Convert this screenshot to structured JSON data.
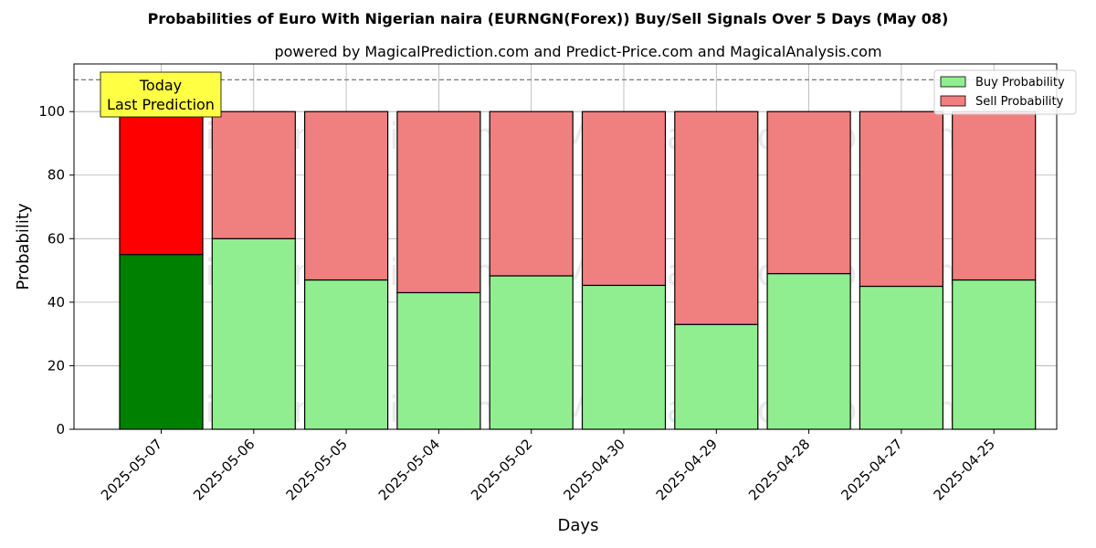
{
  "chart_data": {
    "type": "bar",
    "stacked": true,
    "title": "Probabilities of Euro With Nigerian naira (EURNGN(Forex)) Buy/Sell Signals Over 5 Days (May 08)",
    "subtitle": "powered by MagicalPrediction.com and Predict-Price.com and MagicalAnalysis.com",
    "xlabel": "Days",
    "ylabel": "Probability",
    "ylim": [
      0,
      115
    ],
    "yticks": [
      0,
      20,
      40,
      60,
      80,
      100
    ],
    "grid": true,
    "categories": [
      "2025-05-07",
      "2025-05-06",
      "2025-05-05",
      "2025-05-04",
      "2025-05-02",
      "2025-04-30",
      "2025-04-29",
      "2025-04-28",
      "2025-04-27",
      "2025-04-25"
    ],
    "series": [
      {
        "name": "Buy Probability",
        "color": "#90ee90",
        "highlight_color": "#008000",
        "values": [
          55,
          60,
          47,
          43,
          48.3,
          45.3,
          33,
          49,
          45,
          47
        ]
      },
      {
        "name": "Sell Probability",
        "color": "#f08080",
        "highlight_color": "#ff0000",
        "values": [
          45,
          40,
          53,
          57,
          51.7,
          54.7,
          67,
          51,
          55,
          53
        ]
      }
    ],
    "reference_line": {
      "y": 110,
      "style": "dashed"
    },
    "annotation": {
      "lines": [
        "Today",
        "Last Prediction"
      ],
      "background": "#ffff44"
    },
    "legend": {
      "position": "top-right"
    },
    "watermarks": [
      "MagicalAnalysis.com",
      "MagicalPrediction.com"
    ]
  }
}
